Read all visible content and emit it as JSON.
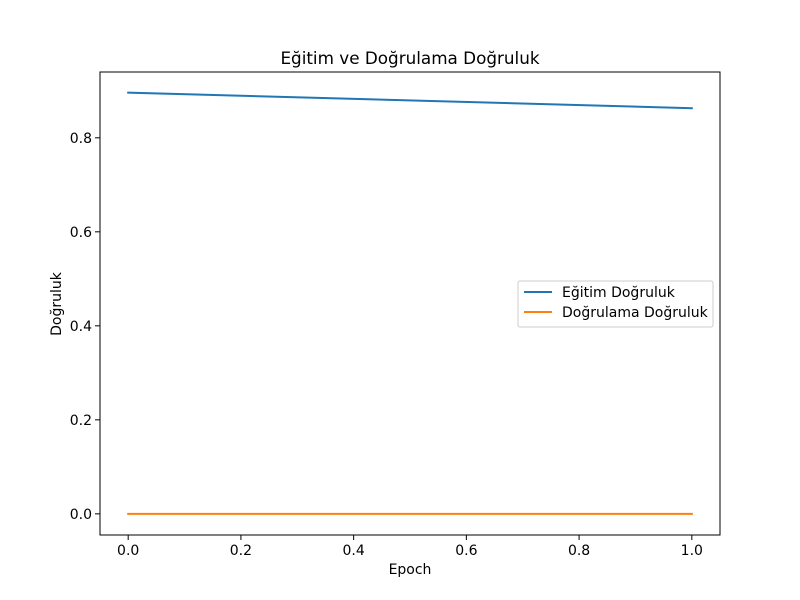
{
  "chart_data": {
    "type": "line",
    "title": "Eğitim ve Doğrulama Doğruluk",
    "xlabel": "Epoch",
    "ylabel": "Doğruluk",
    "x": [
      0.0,
      1.0
    ],
    "xlim": [
      -0.05,
      1.05
    ],
    "ylim": [
      -0.045,
      0.94
    ],
    "xticks": [
      0.0,
      0.2,
      0.4,
      0.6,
      0.8,
      1.0
    ],
    "xtick_labels": [
      "0.0",
      "0.2",
      "0.4",
      "0.6",
      "0.8",
      "1.0"
    ],
    "yticks": [
      0.0,
      0.2,
      0.4,
      0.6,
      0.8
    ],
    "ytick_labels": [
      "0.0",
      "0.2",
      "0.4",
      "0.6",
      "0.8"
    ],
    "grid": false,
    "legend_position": "center-right",
    "series": [
      {
        "name": "Eğitim Doğruluk",
        "values": [
          0.896,
          0.863
        ],
        "color": "#1f77b4"
      },
      {
        "name": "Doğrulama Doğruluk",
        "values": [
          0.0,
          0.0
        ],
        "color": "#ff7f0e"
      }
    ]
  }
}
